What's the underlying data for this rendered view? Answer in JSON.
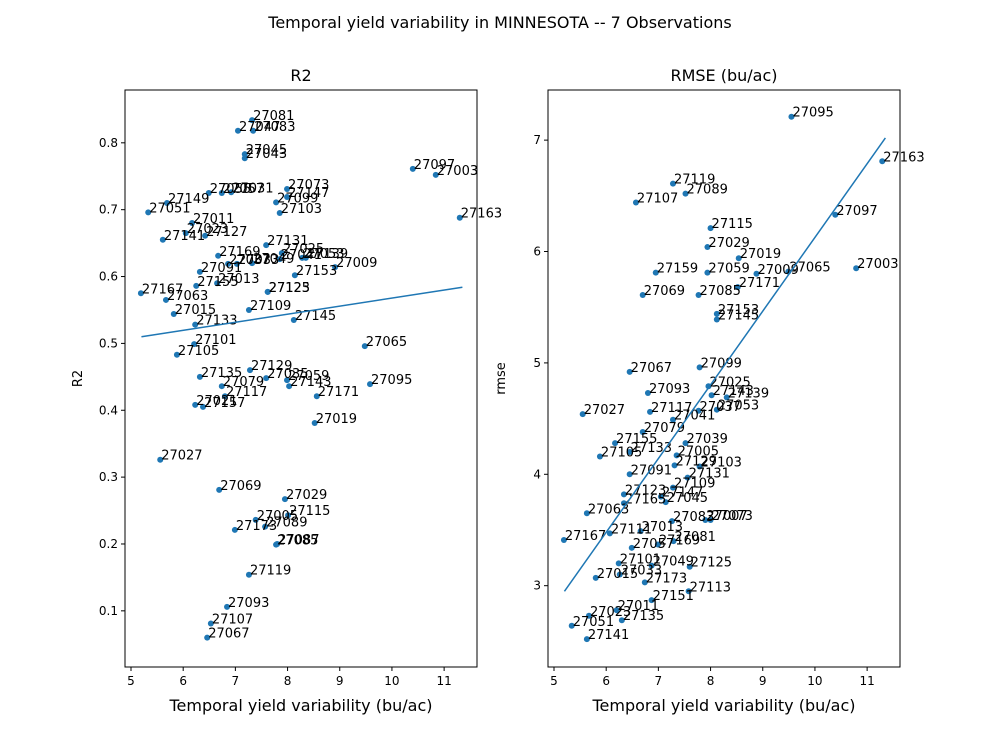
{
  "figure_title": "Temporal yield variability in MINNESOTA -- 7 Observations",
  "chart_data": [
    {
      "type": "scatter",
      "title": "R2",
      "xlabel": "Temporal yield variability (bu/ac)",
      "ylabel": "R2",
      "color": "#1f77b4",
      "xlim": [
        4.885,
        11.63
      ],
      "ylim": [
        0.016,
        0.879
      ],
      "xticks": [
        5,
        6,
        7,
        8,
        9,
        10,
        11
      ],
      "yticks": [
        0.1,
        0.2,
        0.3,
        0.4,
        0.5,
        0.6,
        0.7,
        0.8
      ],
      "fit": {
        "x": [
          5.2,
          11.35
        ],
        "y": [
          0.51,
          0.584
        ]
      },
      "labels": [
        "27081",
        "27047",
        "27083",
        "27045",
        "27043",
        "27097",
        "27003",
        "27163",
        "27055",
        "27057",
        "27031",
        "27073",
        "27147",
        "27149",
        "27051",
        "27099",
        "27103",
        "27011",
        "27023",
        "27127",
        "27141",
        "27131",
        "27025",
        "27053",
        "27139",
        "27169",
        "27041",
        "27049",
        "27033",
        "27037",
        "27009",
        "27153",
        "27091",
        "27167",
        "27155",
        "27013",
        "27123",
        "27125",
        "27063",
        "27015",
        "27109",
        "27145",
        "27133",
        "27101",
        "27065",
        "27105",
        "27129",
        "27035",
        "27059",
        "27135",
        "27079",
        "27143",
        "27095",
        "27117",
        "27171",
        "27021",
        "27157",
        "27019",
        "27027",
        "27069",
        "27029",
        "27115",
        "27005",
        "27173",
        "27089",
        "27085",
        "27087",
        "27119",
        "27093",
        "27107",
        "27067"
      ],
      "x": [
        7.32,
        7.05,
        7.34,
        7.18,
        7.18,
        10.4,
        10.84,
        11.3,
        6.49,
        6.74,
        6.92,
        7.99,
        7.99,
        5.69,
        5.33,
        7.78,
        7.85,
        6.17,
        6.05,
        6.42,
        5.61,
        7.59,
        7.89,
        8.28,
        8.35,
        6.67,
        7.85,
        7.32,
        7.03,
        6.86,
        8.91,
        8.14,
        6.32,
        5.19,
        6.25,
        6.65,
        7.62,
        7.62,
        5.67,
        5.82,
        7.26,
        8.12,
        6.23,
        6.21,
        9.48,
        5.88,
        7.28,
        7.59,
        7.99,
        6.32,
        6.74,
        8.03,
        9.58,
        6.8,
        8.56,
        6.23,
        6.38,
        8.52,
        5.56,
        6.69,
        7.95,
        8.01,
        7.39,
        6.99,
        7.57,
        7.78,
        7.8,
        7.26,
        6.84,
        6.53,
        6.46
      ],
      "y": [
        0.834,
        0.818,
        0.818,
        0.783,
        0.777,
        0.761,
        0.752,
        0.688,
        0.725,
        0.725,
        0.726,
        0.731,
        0.719,
        0.71,
        0.696,
        0.711,
        0.695,
        0.68,
        0.665,
        0.661,
        0.655,
        0.647,
        0.635,
        0.628,
        0.628,
        0.631,
        0.626,
        0.62,
        0.619,
        0.619,
        0.614,
        0.602,
        0.607,
        0.575,
        0.586,
        0.59,
        0.577,
        0.577,
        0.565,
        0.544,
        0.55,
        0.535,
        0.528,
        0.499,
        0.496,
        0.483,
        0.46,
        0.448,
        0.445,
        0.45,
        0.436,
        0.436,
        0.439,
        0.421,
        0.421,
        0.408,
        0.405,
        0.381,
        0.326,
        0.281,
        0.267,
        0.243,
        0.236,
        0.221,
        0.226,
        0.199,
        0.2,
        0.154,
        0.106,
        0.081,
        0.06
      ]
    },
    {
      "type": "scatter",
      "title": "RMSE (bu/ac)",
      "xlabel": "Temporal yield variability (bu/ac)",
      "ylabel": "rmse",
      "color": "#1f77b4",
      "xlim": [
        4.885,
        11.63
      ],
      "ylim": [
        2.27,
        7.45
      ],
      "xticks": [
        5,
        6,
        7,
        8,
        9,
        10,
        11
      ],
      "yticks": [
        3,
        4,
        5,
        6,
        7
      ],
      "fit": {
        "x": [
          5.2,
          11.35
        ],
        "y": [
          2.95,
          7.02
        ]
      },
      "labels": [
        "27095",
        "27163",
        "27119",
        "27089",
        "27107",
        "27097",
        "27115",
        "27029",
        "27019",
        "27159",
        "27059",
        "27009",
        "27065",
        "27003",
        "27171",
        "27069",
        "27085",
        "27153",
        "27145",
        "27067",
        "27099",
        "27093",
        "27025",
        "27143",
        "27139",
        "27027",
        "27117",
        "27037",
        "27053",
        "27041",
        "27079",
        "27155",
        "27039",
        "27133",
        "27105",
        "27005",
        "27129",
        "27103",
        "27091",
        "27131",
        "27109",
        "27123",
        "27147",
        "27045",
        "27165",
        "27063",
        "27013",
        "27111",
        "27083",
        "27007",
        "27073",
        "27081",
        "27167",
        "27057",
        "27169",
        "27101",
        "27049",
        "27125",
        "27015",
        "27033",
        "27173",
        "27113",
        "27151",
        "27011",
        "27023",
        "27135",
        "27051",
        "27141"
      ],
      "x": [
        9.55,
        11.29,
        7.28,
        7.52,
        6.57,
        10.39,
        8.0,
        7.94,
        8.54,
        6.95,
        7.94,
        8.88,
        9.49,
        10.79,
        8.52,
        6.7,
        7.77,
        8.12,
        8.12,
        6.45,
        7.79,
        6.8,
        7.96,
        8.02,
        8.31,
        5.55,
        6.84,
        7.77,
        8.12,
        7.28,
        6.7,
        6.17,
        7.52,
        6.45,
        5.88,
        7.35,
        7.31,
        7.79,
        6.45,
        7.56,
        7.28,
        6.34,
        7.05,
        7.14,
        6.34,
        5.63,
        6.66,
        6.07,
        7.26,
        7.9,
        8.0,
        7.29,
        5.19,
        6.49,
        6.99,
        6.24,
        6.87,
        7.6,
        5.8,
        6.26,
        6.74,
        7.58,
        6.87,
        6.2,
        5.67,
        6.3,
        5.34,
        5.63
      ],
      "y": [
        7.21,
        6.81,
        6.61,
        6.52,
        6.44,
        6.33,
        6.21,
        6.04,
        5.94,
        5.81,
        5.81,
        5.8,
        5.82,
        5.85,
        5.68,
        5.61,
        5.61,
        5.44,
        5.39,
        4.92,
        4.96,
        4.73,
        4.79,
        4.71,
        4.69,
        4.54,
        4.56,
        4.57,
        4.58,
        4.49,
        4.38,
        4.28,
        4.28,
        4.2,
        4.16,
        4.17,
        4.08,
        4.07,
        4.0,
        3.97,
        3.88,
        3.82,
        3.8,
        3.75,
        3.74,
        3.65,
        3.49,
        3.47,
        3.58,
        3.59,
        3.59,
        3.4,
        3.41,
        3.34,
        3.37,
        3.2,
        3.18,
        3.17,
        3.07,
        3.1,
        3.03,
        2.95,
        2.87,
        2.78,
        2.73,
        2.69,
        2.64,
        2.52
      ]
    }
  ]
}
